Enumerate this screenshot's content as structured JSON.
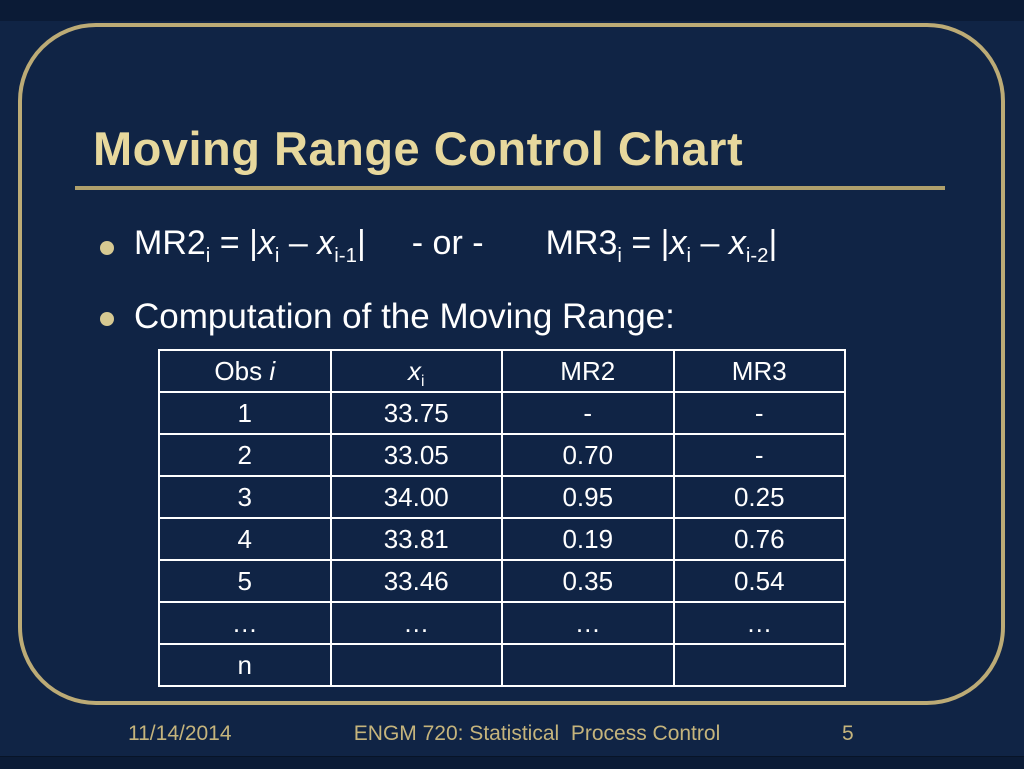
{
  "slide": {
    "title": "Moving Range Control Chart",
    "formulas": {
      "mr2": {
        "name": "MR2",
        "name_sub": "i",
        "eq": " = |",
        "var1": "x",
        "var1_sub": "i",
        "minus": " – ",
        "var2": "x",
        "var2_sub": "i-1",
        "close": "|"
      },
      "or_label": "- or -",
      "mr3": {
        "name": "MR3",
        "name_sub": "i",
        "eq": " = |",
        "var1": "x",
        "var1_sub": "i",
        "minus": " – ",
        "var2": "x",
        "var2_sub": "i-2",
        "close": "|"
      }
    },
    "bullet2": "Computation of the Moving Range:",
    "table": {
      "headers": {
        "obs_text": "Obs ",
        "obs_var": "i",
        "x_var": "x",
        "x_sub": "i",
        "mr2": "MR2",
        "mr3": "MR3"
      },
      "rows": [
        [
          "1",
          "33.75",
          "-",
          "-"
        ],
        [
          "2",
          "33.05",
          "0.70",
          "-"
        ],
        [
          "3",
          "34.00",
          "0.95",
          "0.25"
        ],
        [
          "4",
          "33.81",
          "0.19",
          "0.76"
        ],
        [
          "5",
          "33.46",
          "0.35",
          "0.54"
        ],
        [
          "…",
          "…",
          "…",
          "…"
        ],
        [
          "n",
          "",
          "",
          ""
        ]
      ]
    },
    "footer": {
      "date": "11/14/2014",
      "course": "ENGM 720: Statistical  Process Control",
      "page": "5"
    }
  },
  "colors": {
    "background": "#102445",
    "outer_band": "#0b1b36",
    "frame_border": "#bcab76",
    "title_text": "#e7d89d",
    "title_rule": "#afa06c",
    "body_text": "#ffffff",
    "bullet_dot": "#d6c992",
    "table_border": "#ffffff",
    "footer_text": "#c5b47c"
  }
}
